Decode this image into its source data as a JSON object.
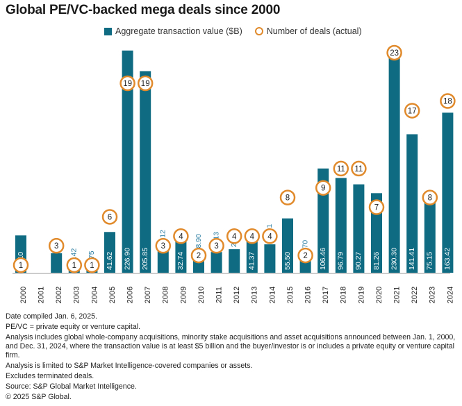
{
  "title": "Global PE/VC-backed mega deals since 2000",
  "legend": {
    "bar_label": "Aggregate transaction value ($B)",
    "circle_label": "Number of deals (actual)"
  },
  "colors": {
    "bar": "#0e6b82",
    "circle": "#e08a2c",
    "outside_label": "#2e7fa3"
  },
  "chart_data": {
    "type": "bar",
    "categories": [
      "2000",
      "2001",
      "2002",
      "2003",
      "2004",
      "2005",
      "2006",
      "2007",
      "2008",
      "2009",
      "2010",
      "2011",
      "2012",
      "2013",
      "2014",
      "2015",
      "2016",
      "2017",
      "2018",
      "2019",
      "2020",
      "2021",
      "2022",
      "2023",
      "2024"
    ],
    "series": [
      {
        "name": "Aggregate transaction value ($B)",
        "type": "bar",
        "values": [
          38.1,
          null,
          20,
          8.42,
          5.75,
          41.62,
          226.9,
          205.85,
          23.12,
          32.74,
          18.9,
          21.13,
          24.03,
          41.37,
          29.01,
          55.5,
          12.7,
          106.46,
          96.79,
          90.27,
          81.26,
          230.3,
          141.41,
          75.15,
          163.42
        ],
        "labels": [
          "38.10",
          "",
          "",
          "8.42",
          "5.75",
          "41.62",
          "226.90",
          "205.85",
          "23.12",
          "32.74",
          "18.90",
          "21.13",
          "24.03",
          "41.37",
          "29.01",
          "55.50",
          "12.70",
          "106.46",
          "96.79",
          "90.27",
          "81.26",
          "230.30",
          "141.41",
          "75.15",
          "163.42"
        ]
      },
      {
        "name": "Number of deals (actual)",
        "type": "circle",
        "values": [
          1,
          null,
          3,
          1,
          1,
          6,
          19,
          19,
          3,
          4,
          2,
          3,
          4,
          4,
          4,
          8,
          2,
          9,
          11,
          11,
          7,
          23,
          17,
          8,
          18
        ]
      }
    ],
    "xlabel": "",
    "ylabel": "",
    "ylim": [
      0,
      230.3
    ],
    "grid": false,
    "legend_position": "top"
  },
  "notes": [
    "Date compiled Jan. 6, 2025.",
    "PE/VC = private equity or venture capital.",
    "Analysis includes global whole-company acquisitions, minority stake acquisitions and asset acquisitions announced between Jan. 1, 2000, and Dec. 31, 2024, where the transaction value is at least $5 billion and the buyer/investor is or includes a private equity or venture capital firm.",
    "Analysis is limited to S&P Market Intelligence-covered companies or assets.",
    "Excludes terminated deals.",
    "Source: S&P Global Market Intelligence.",
    "© 2025 S&P Global."
  ]
}
